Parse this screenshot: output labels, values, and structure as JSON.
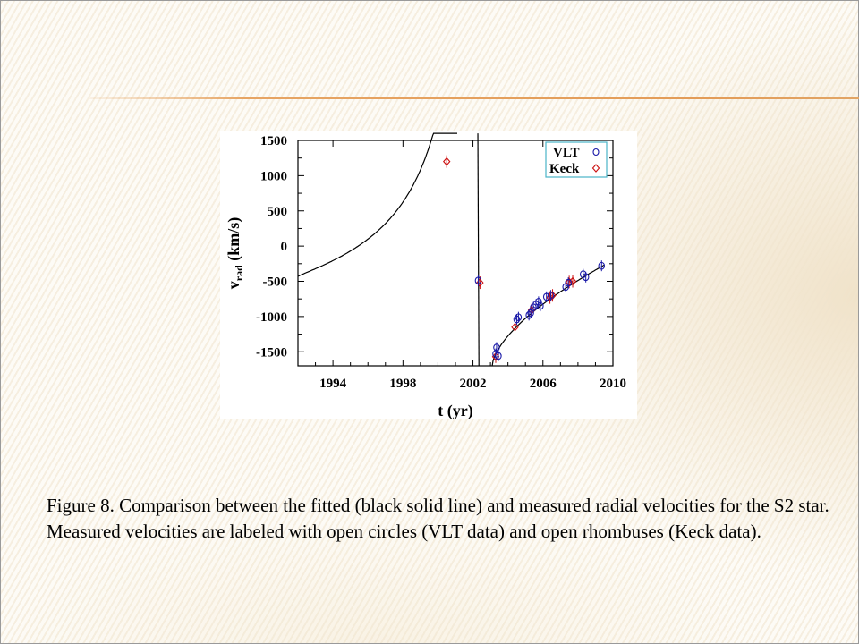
{
  "caption": "Figure 8. Comparison between the fitted (black solid line) and measured radial velocities for the S2 star. Measured velocities are labeled with open circles (VLT data) and open rhombuses (Keck data).",
  "colors": {
    "vlt": "#1a1aa8",
    "keck": "#cc1010",
    "fit": "#000000",
    "legend_border": "#4ab4c8",
    "accent_rule": "#e39c58"
  },
  "chart_data": {
    "type": "scatter",
    "xlabel": "t (yr)",
    "ylabel": "v",
    "ylabel_sub": "rad",
    "ylabel_unit": " (km/s)",
    "xlim": [
      1992,
      2010
    ],
    "ylim": [
      -1700,
      1500
    ],
    "xticks": [
      1994,
      1998,
      2002,
      2006,
      2010
    ],
    "yticks": [
      1500,
      1000,
      500,
      0,
      -500,
      -1000,
      -1500
    ],
    "grid": false,
    "legend_position": "top-right",
    "series": [
      {
        "name": "VLT",
        "marker": "circle",
        "points": [
          [
            2002.3,
            -490
          ],
          [
            2003.3,
            -1530
          ],
          [
            2003.35,
            -1440
          ],
          [
            2003.45,
            -1560
          ],
          [
            2004.5,
            -1040
          ],
          [
            2004.6,
            -1010
          ],
          [
            2005.2,
            -980
          ],
          [
            2005.3,
            -950
          ],
          [
            2005.45,
            -870
          ],
          [
            2005.6,
            -830
          ],
          [
            2005.75,
            -790
          ],
          [
            2005.85,
            -850
          ],
          [
            2006.2,
            -720
          ],
          [
            2006.45,
            -700
          ],
          [
            2007.3,
            -580
          ],
          [
            2007.45,
            -520
          ],
          [
            2008.3,
            -400
          ],
          [
            2008.45,
            -440
          ],
          [
            2009.35,
            -280
          ]
        ]
      },
      {
        "name": "Keck",
        "marker": "rhombus",
        "points": [
          [
            2000.5,
            1200
          ],
          [
            2002.4,
            -520
          ],
          [
            2003.3,
            -1570
          ],
          [
            2004.4,
            -1150
          ],
          [
            2005.35,
            -910
          ],
          [
            2006.4,
            -730
          ],
          [
            2006.55,
            -700
          ],
          [
            2007.5,
            -510
          ],
          [
            2007.7,
            -500
          ]
        ]
      }
    ]
  }
}
